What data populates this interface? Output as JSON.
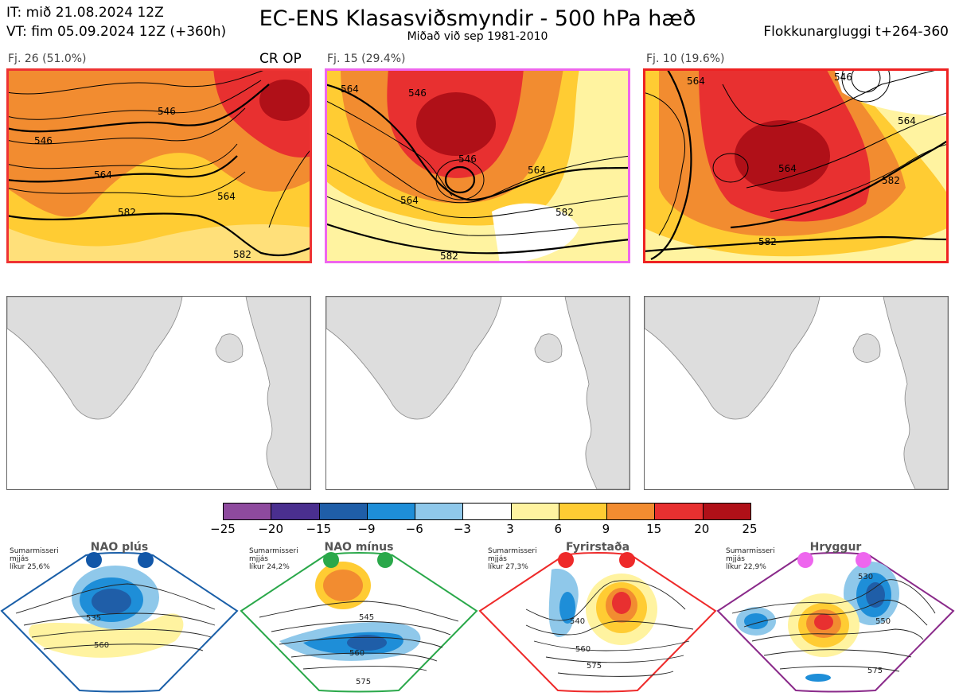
{
  "header": {
    "it_line": "IT: mið 21.08.2024 12Z",
    "vt_line": "VT: fim 05.09.2024 12Z  (+360h)",
    "title": "EC-ENS Klasasviðsmyndir - 500 hPa hæð",
    "subtitle": "Miðað við sep 1981-2010",
    "window": "Flokkunargluggi t+264-360"
  },
  "clusters": [
    {
      "label": "Fj. 26 (51.0%)",
      "extra": "CR OP",
      "border_color": "#ee3333",
      "contours": [
        "546",
        "564",
        "582",
        "564",
        "546",
        "582"
      ]
    },
    {
      "label": "Fj. 15 (29.4%)",
      "extra": "",
      "border_color": "#ee66ee",
      "contours": [
        "564",
        "546",
        "564",
        "582",
        "564",
        "546",
        "582"
      ]
    },
    {
      "label": "Fj. 10 (19.6%)",
      "extra": "",
      "border_color": "#ee2222",
      "contours": [
        "564",
        "546",
        "564",
        "582",
        "564",
        "582"
      ]
    }
  ],
  "colorbar": {
    "ticks": [
      "−25",
      "−20",
      "−15",
      "−9",
      "−6",
      "−3",
      "3",
      "6",
      "9",
      "15",
      "20",
      "25"
    ],
    "colors": [
      "#8e4a9e",
      "#4a2f8f",
      "#1f5ea8",
      "#1e8ed8",
      "#8fc8ea",
      "#ffffff",
      "#fff3a0",
      "#ffcc33",
      "#f28c30",
      "#e83030",
      "#b01018"
    ]
  },
  "regimes": [
    {
      "name": "NAO plús",
      "info": [
        "Sumarmisseri",
        "mjjás",
        "líkur 25,6%"
      ],
      "dot_color": "#1257a8",
      "border_color": "#1a5fa8",
      "contours": [
        "535",
        "560"
      ]
    },
    {
      "name": "NAO mínus",
      "info": [
        "Sumarmisseri",
        "mjjás",
        "líkur 24,2%"
      ],
      "dot_color": "#2aa84a",
      "border_color": "#2aa84a",
      "contours": [
        "545",
        "560",
        "575"
      ]
    },
    {
      "name": "Fyrirstaða",
      "info": [
        "Sumarmisseri",
        "mjjás",
        "líkur 27,3%"
      ],
      "dot_color": "#ee2a2a",
      "border_color": "#ee2a2a",
      "contours": [
        "540",
        "560",
        "575"
      ]
    },
    {
      "name": "Hryggur",
      "info": [
        "Sumarmisseri",
        "mjjás",
        "líkur 22,9%"
      ],
      "dot_color": "#ee66ee",
      "border_color": "#8a2a8a",
      "contours": [
        "530",
        "550",
        "575"
      ]
    }
  ]
}
